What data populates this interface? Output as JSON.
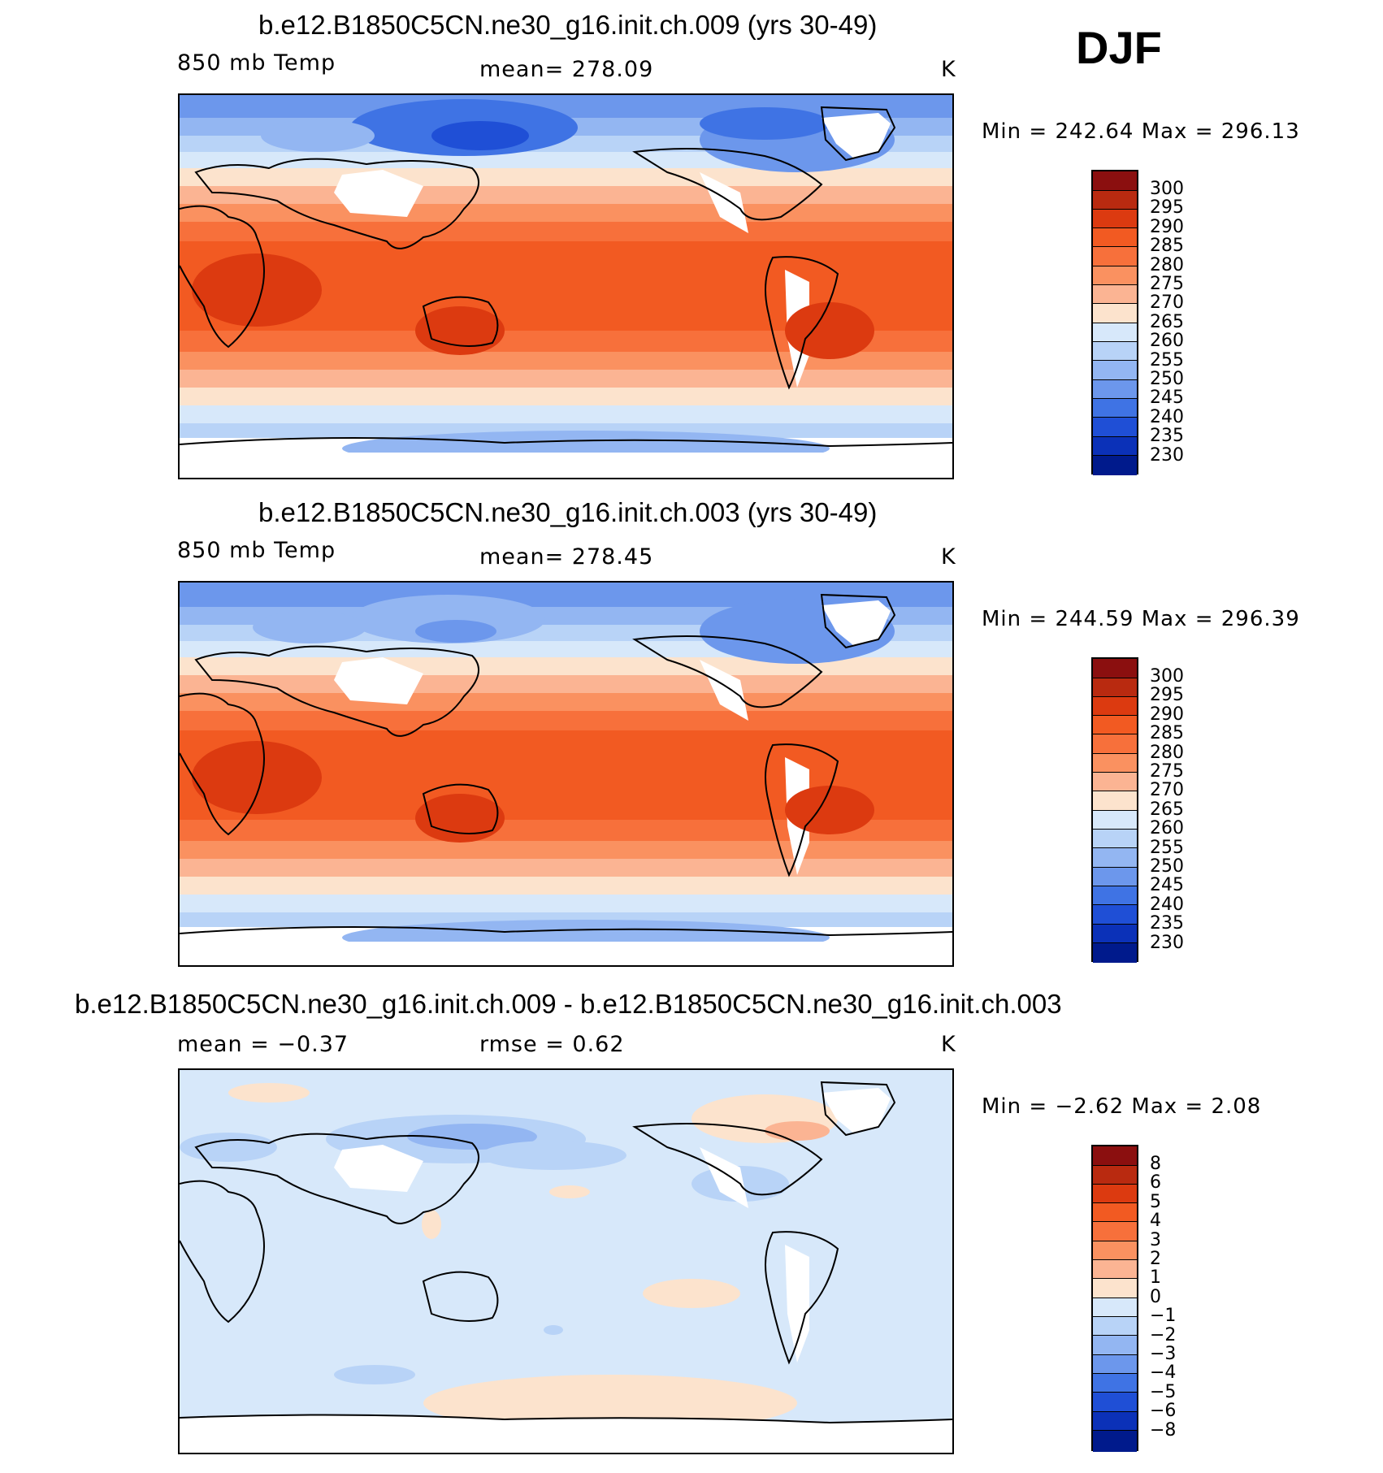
{
  "season": "DJF",
  "panels": [
    {
      "title": "b.e12.B1850C5CN.ne30_g16.init.ch.009 (yrs 30-49)",
      "left_label": "850 mb Temp",
      "center_label": "mean=  278.09",
      "units": "K",
      "min_max": "Min  =  242.64  Max  =  296.13",
      "colorbar_labels": [
        "300",
        "295",
        "290",
        "285",
        "280",
        "275",
        "270",
        "265",
        "260",
        "255",
        "250",
        "245",
        "240",
        "235",
        "230"
      ],
      "style": "abs1"
    },
    {
      "title": "b.e12.B1850C5CN.ne30_g16.init.ch.003 (yrs 30-49)",
      "left_label": "850 mb Temp",
      "center_label": "mean=  278.45",
      "units": "K",
      "min_max": "Min  =  244.59  Max  =  296.39",
      "colorbar_labels": [
        "300",
        "295",
        "290",
        "285",
        "280",
        "275",
        "270",
        "265",
        "260",
        "255",
        "250",
        "245",
        "240",
        "235",
        "230"
      ],
      "style": "abs2"
    },
    {
      "title": "b.e12.B1850C5CN.ne30_g16.init.ch.009 - b.e12.B1850C5CN.ne30_g16.init.ch.003",
      "left_label": "mean  =    −0.37",
      "center_label": "rmse  =     0.62",
      "units": "K",
      "min_max": "Min  =    −2.62  Max  =     2.08",
      "colorbar_labels": [
        "8",
        "6",
        "5",
        "4",
        "3",
        "2",
        "1",
        "0",
        "−1",
        "−2",
        "−3",
        "−4",
        "−5",
        "−6",
        "−8"
      ],
      "style": "diff"
    }
  ],
  "colors": {
    "abs_scale": [
      "#8b0f0f",
      "#b92a10",
      "#dc3a10",
      "#f25a22",
      "#f7703b",
      "#fa9160",
      "#fbb493",
      "#fce3cd",
      "#d7e8fa",
      "#b8d3f7",
      "#93b6f2",
      "#6c97ec",
      "#3f73e4",
      "#1f4fd6",
      "#0b31b8",
      "#001a8c"
    ],
    "diff_scale": [
      "#8b0f0f",
      "#b92a10",
      "#dc3a10",
      "#f25a22",
      "#f7703b",
      "#fa9160",
      "#fbb493",
      "#fce3cd",
      "#d7e8fa",
      "#b8d3f7",
      "#93b6f2",
      "#6c97ec",
      "#3f73e4",
      "#1f4fd6",
      "#0b31b8",
      "#001a8c"
    ]
  },
  "chart_data": {
    "type": "heatmap",
    "variable": "850 mb Temp",
    "units": "K",
    "season": "DJF",
    "panels": [
      {
        "case": "b.e12.B1850C5CN.ne30_g16.init.ch.009",
        "years": "30-49",
        "mean": 278.09,
        "min": 242.64,
        "max": 296.13,
        "contour_levels": [
          230,
          235,
          240,
          245,
          250,
          255,
          260,
          265,
          270,
          275,
          280,
          285,
          290,
          295,
          300
        ]
      },
      {
        "case": "b.e12.B1850C5CN.ne30_g16.init.ch.003",
        "years": "30-49",
        "mean": 278.45,
        "min": 244.59,
        "max": 296.39,
        "contour_levels": [
          230,
          235,
          240,
          245,
          250,
          255,
          260,
          265,
          270,
          275,
          280,
          285,
          290,
          295,
          300
        ]
      },
      {
        "case": "difference",
        "mean": -0.37,
        "rmse": 0.62,
        "min": -2.62,
        "max": 2.08,
        "contour_levels": [
          -8,
          -6,
          -5,
          -4,
          -3,
          -2,
          -1,
          0,
          1,
          2,
          3,
          4,
          5,
          6,
          8
        ]
      }
    ]
  }
}
